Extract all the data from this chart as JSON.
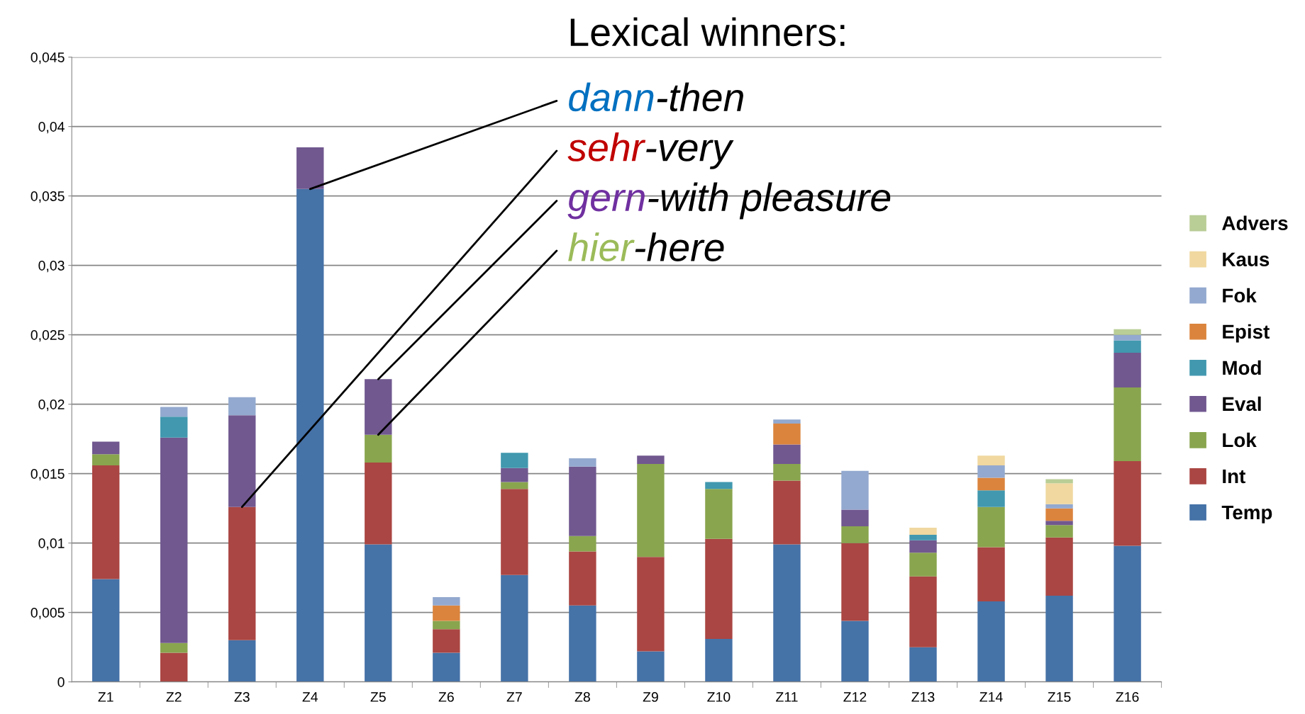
{
  "chart_data": {
    "type": "bar",
    "stacked": true,
    "categories": [
      "Z1",
      "Z2",
      "Z3",
      "Z4",
      "Z5",
      "Z6",
      "Z7",
      "Z8",
      "Z9",
      "Z10",
      "Z11",
      "Z12",
      "Z13",
      "Z14",
      "Z15",
      "Z16"
    ],
    "series": [
      {
        "name": "Temp",
        "color": "#4572a7",
        "values": [
          0.0074,
          0,
          0.003,
          0.0355,
          0.0099,
          0.0021,
          0.0077,
          0.0055,
          0.0022,
          0.0031,
          0.0099,
          0.0044,
          0.0025,
          0.0058,
          0.0062,
          0.0098
        ]
      },
      {
        "name": "Int",
        "color": "#aa4643",
        "values": [
          0.0082,
          0.0021,
          0.0096,
          0,
          0.0059,
          0.0017,
          0.0062,
          0.0039,
          0.0068,
          0.0072,
          0.0046,
          0.0056,
          0.0051,
          0.0039,
          0.0042,
          0.0061
        ]
      },
      {
        "name": "Lok",
        "color": "#89a54e",
        "values": [
          0.0008,
          0.0007,
          0,
          0,
          0.002,
          0.0006,
          0.0005,
          0.0011,
          0.0067,
          0.0036,
          0.0012,
          0.0012,
          0.0017,
          0.0029,
          0.0009,
          0.0053
        ]
      },
      {
        "name": "Eval",
        "color": "#71588f",
        "values": [
          0.0009,
          0.0148,
          0.0066,
          0.003,
          0.004,
          0,
          0.001,
          0.005,
          0.0006,
          0,
          0.0014,
          0.0012,
          0.0009,
          0,
          0.0003,
          0.0025
        ]
      },
      {
        "name": "Mod",
        "color": "#4198af",
        "values": [
          0,
          0.0015,
          0,
          0,
          0,
          0,
          0.0011,
          0,
          0,
          0.0005,
          0,
          0,
          0.0004,
          0.0012,
          0,
          0.0009
        ]
      },
      {
        "name": "Epist",
        "color": "#db843d",
        "values": [
          0,
          0,
          0,
          0,
          0,
          0.0011,
          0,
          0,
          0,
          0,
          0.0015,
          0,
          0,
          0.0009,
          0.0009,
          0
        ]
      },
      {
        "name": "Fok",
        "color": "#93a9cf",
        "values": [
          0,
          0.0007,
          0.0013,
          0,
          0,
          0.0006,
          0,
          0.0006,
          0,
          0,
          0.0003,
          0.0028,
          0,
          0.0009,
          0.0003,
          0.0004
        ]
      },
      {
        "name": "Kaus",
        "color": "#f0d8a0",
        "values": [
          0,
          0,
          0,
          0,
          0,
          0,
          0,
          0,
          0,
          0,
          0,
          0,
          0.0005,
          0.0007,
          0.0015,
          0
        ]
      },
      {
        "name": "Advers",
        "color": "#b9cd96",
        "values": [
          0,
          0,
          0,
          0,
          0,
          0,
          0,
          0,
          0,
          0,
          0,
          0,
          0,
          0,
          0.0003,
          0.0004
        ]
      }
    ],
    "ylim": [
      0,
      0.045
    ],
    "yticks": [
      {
        "value": 0,
        "label": "0"
      },
      {
        "value": 0.005,
        "label": "0,005"
      },
      {
        "value": 0.01,
        "label": "0,01"
      },
      {
        "value": 0.015,
        "label": "0,015"
      },
      {
        "value": 0.02,
        "label": "0,02"
      },
      {
        "value": 0.025,
        "label": "0,025"
      },
      {
        "value": 0.03,
        "label": "0,03"
      },
      {
        "value": 0.035,
        "label": "0,035"
      },
      {
        "value": 0.04,
        "label": "0,04"
      },
      {
        "value": 0.045,
        "label": "0,045"
      }
    ],
    "grid": "y",
    "legend": "right",
    "annotations": [
      "Lexical winners:",
      {
        "text": "dann-then",
        "x": "Z4",
        "y": 0.0355
      },
      {
        "text": "sehr-very",
        "x": "Z3",
        "y": 0.0126
      },
      {
        "text": "gern-with pleasure",
        "x": "Z5",
        "y": 0.0218
      },
      {
        "text": "hier-here",
        "x": "Z5",
        "y": 0.0178
      }
    ]
  }
}
